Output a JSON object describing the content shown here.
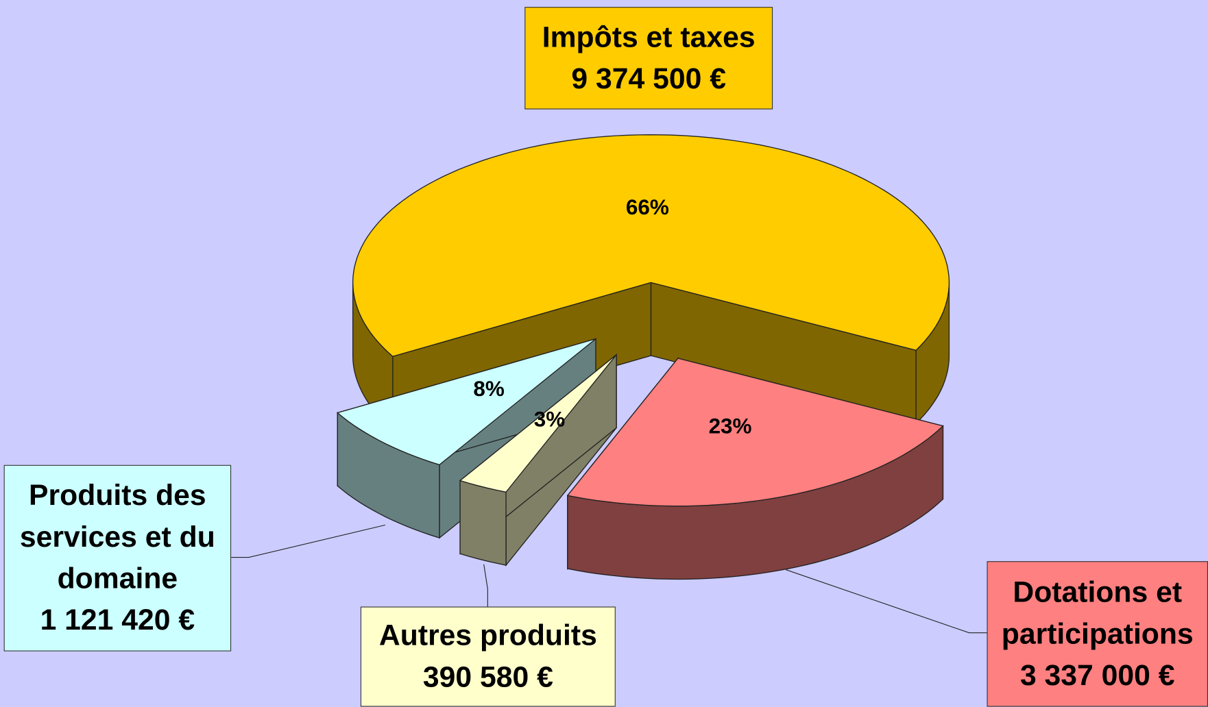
{
  "chart_data": {
    "type": "pie",
    "categories": [
      "Impôts et taxes",
      "Dotations et participations",
      "Autres produits",
      "Produits des services et du domaine"
    ],
    "values": [
      9374500,
      3337000,
      390580,
      1121420
    ],
    "value_labels": [
      "9 374 500 €",
      "3 337 000 €",
      "390 580 €",
      "1 121 420 €"
    ],
    "percent_labels": [
      "66%",
      "23%",
      "3%",
      "8%"
    ],
    "colors": [
      "#ffcc00",
      "#ff8080",
      "#ffffcc",
      "#ccffff"
    ],
    "side_colors": [
      "#806600",
      "#804040",
      "#808066",
      "#668080"
    ]
  }
}
